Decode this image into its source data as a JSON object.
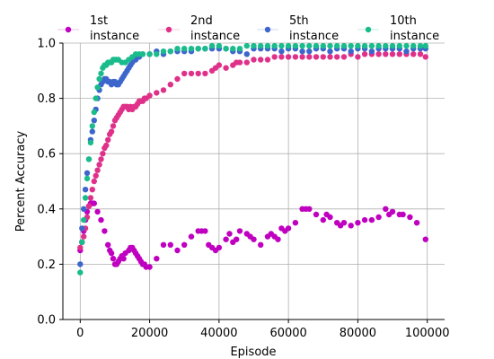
{
  "chart_data": {
    "type": "scatter",
    "title": "",
    "xlabel": "Episode",
    "ylabel": "Percent Accuracy",
    "xlim": [
      -5000,
      105000
    ],
    "ylim": [
      0.0,
      1.0
    ],
    "xticks": [
      0,
      20000,
      40000,
      60000,
      80000,
      100000
    ],
    "xtick_labels": [
      "0",
      "20000",
      "40000",
      "60000",
      "80000",
      "100000"
    ],
    "yticks": [
      0.0,
      0.2,
      0.4,
      0.6,
      0.8,
      1.0
    ],
    "ytick_labels": [
      "0.0",
      "0.2",
      "0.4",
      "0.6",
      "0.8",
      "1.0"
    ],
    "grid": true,
    "legend_position": "top",
    "series": [
      {
        "name": "1st instance",
        "color": "#c000c0",
        "x": [
          0,
          500,
          1000,
          1500,
          2000,
          2500,
          3000,
          3500,
          4000,
          5000,
          6000,
          7000,
          8000,
          8500,
          9000,
          9500,
          10000,
          10500,
          11000,
          11500,
          12000,
          12500,
          13000,
          14000,
          14500,
          15000,
          15500,
          16000,
          16500,
          17000,
          17500,
          18000,
          18500,
          19000,
          20000,
          22000,
          24000,
          26000,
          28000,
          30000,
          32000,
          34000,
          35000,
          36000,
          37000,
          38000,
          39000,
          40000,
          42000,
          43000,
          44000,
          45000,
          46000,
          48000,
          49000,
          50000,
          52000,
          54000,
          55000,
          56000,
          57000,
          58000,
          59000,
          60000,
          62000,
          64000,
          65000,
          66000,
          68000,
          70000,
          71000,
          72000,
          74000,
          75000,
          76000,
          78000,
          80000,
          82000,
          84000,
          86000,
          88000,
          89000,
          90000,
          92000,
          93000,
          95000,
          97000,
          99500
        ],
        "y": [
          0.25,
          0.28,
          0.32,
          0.36,
          0.39,
          0.41,
          0.42,
          0.42,
          0.42,
          0.39,
          0.36,
          0.32,
          0.27,
          0.25,
          0.24,
          0.22,
          0.2,
          0.2,
          0.21,
          0.22,
          0.23,
          0.22,
          0.24,
          0.25,
          0.26,
          0.26,
          0.25,
          0.24,
          0.23,
          0.22,
          0.21,
          0.2,
          0.2,
          0.19,
          0.19,
          0.22,
          0.27,
          0.27,
          0.25,
          0.27,
          0.3,
          0.32,
          0.32,
          0.32,
          0.27,
          0.26,
          0.25,
          0.26,
          0.29,
          0.31,
          0.28,
          0.29,
          0.32,
          0.31,
          0.3,
          0.29,
          0.27,
          0.3,
          0.31,
          0.3,
          0.29,
          0.33,
          0.32,
          0.33,
          0.35,
          0.4,
          0.4,
          0.4,
          0.38,
          0.36,
          0.38,
          0.37,
          0.35,
          0.34,
          0.35,
          0.34,
          0.35,
          0.36,
          0.36,
          0.37,
          0.4,
          0.38,
          0.39,
          0.38,
          0.38,
          0.37,
          0.35,
          0.29
        ]
      },
      {
        "name": "2nd instance",
        "color": "#e0318a",
        "x": [
          0,
          500,
          1000,
          1500,
          2000,
          2500,
          3000,
          3500,
          4000,
          4500,
          5000,
          5500,
          6000,
          6500,
          7000,
          7500,
          8000,
          8500,
          9000,
          9500,
          10000,
          10500,
          11000,
          11500,
          12000,
          12500,
          13000,
          13500,
          14000,
          14500,
          15000,
          15500,
          16000,
          16500,
          17000,
          17500,
          18000,
          18500,
          19000,
          20000,
          22000,
          24000,
          26000,
          28000,
          30000,
          32000,
          34000,
          36000,
          38000,
          39000,
          40000,
          42000,
          44000,
          45000,
          46000,
          48000,
          50000,
          52000,
          54000,
          56000,
          58000,
          60000,
          62000,
          64000,
          66000,
          68000,
          70000,
          72000,
          74000,
          76000,
          78000,
          80000,
          82000,
          84000,
          86000,
          88000,
          90000,
          92000,
          94000,
          96000,
          98000,
          99500
        ],
        "y": [
          0.26,
          0.28,
          0.3,
          0.33,
          0.37,
          0.41,
          0.44,
          0.47,
          0.5,
          0.52,
          0.54,
          0.56,
          0.58,
          0.6,
          0.62,
          0.63,
          0.65,
          0.67,
          0.68,
          0.7,
          0.72,
          0.73,
          0.74,
          0.75,
          0.76,
          0.77,
          0.77,
          0.77,
          0.76,
          0.77,
          0.76,
          0.77,
          0.77,
          0.78,
          0.79,
          0.79,
          0.79,
          0.8,
          0.8,
          0.81,
          0.82,
          0.83,
          0.85,
          0.87,
          0.89,
          0.89,
          0.89,
          0.89,
          0.9,
          0.91,
          0.92,
          0.91,
          0.92,
          0.93,
          0.93,
          0.93,
          0.94,
          0.94,
          0.94,
          0.95,
          0.95,
          0.95,
          0.95,
          0.95,
          0.95,
          0.95,
          0.95,
          0.95,
          0.95,
          0.95,
          0.96,
          0.95,
          0.96,
          0.96,
          0.96,
          0.96,
          0.96,
          0.96,
          0.96,
          0.96,
          0.96,
          0.95
        ]
      },
      {
        "name": "5th instance",
        "color": "#3d66cc",
        "x": [
          0,
          500,
          1000,
          1500,
          2000,
          2500,
          3000,
          3500,
          4000,
          4500,
          5000,
          5500,
          6000,
          6500,
          7000,
          7500,
          8000,
          8500,
          9000,
          9500,
          10000,
          10500,
          11000,
          11500,
          12000,
          12500,
          13000,
          13500,
          14000,
          14500,
          15000,
          16000,
          17000,
          18000,
          20000,
          22000,
          24000,
          26000,
          28000,
          30000,
          32000,
          34000,
          36000,
          38000,
          40000,
          42000,
          44000,
          46000,
          48000,
          50000,
          52000,
          54000,
          56000,
          58000,
          60000,
          62000,
          64000,
          66000,
          68000,
          70000,
          72000,
          74000,
          76000,
          78000,
          80000,
          82000,
          84000,
          86000,
          88000,
          90000,
          92000,
          94000,
          96000,
          98000,
          99500
        ],
        "y": [
          0.2,
          0.33,
          0.4,
          0.47,
          0.53,
          0.58,
          0.65,
          0.68,
          0.72,
          0.76,
          0.8,
          0.83,
          0.85,
          0.86,
          0.87,
          0.87,
          0.86,
          0.86,
          0.85,
          0.86,
          0.86,
          0.85,
          0.85,
          0.86,
          0.87,
          0.88,
          0.89,
          0.9,
          0.91,
          0.92,
          0.93,
          0.94,
          0.95,
          0.96,
          0.96,
          0.97,
          0.96,
          0.97,
          0.97,
          0.97,
          0.97,
          0.98,
          0.98,
          0.98,
          0.98,
          0.98,
          0.97,
          0.97,
          0.96,
          0.98,
          0.98,
          0.98,
          0.98,
          0.97,
          0.98,
          0.98,
          0.97,
          0.97,
          0.98,
          0.98,
          0.97,
          0.98,
          0.98,
          0.97,
          0.98,
          0.98,
          0.97,
          0.98,
          0.98,
          0.98,
          0.98,
          0.97,
          0.98,
          0.98,
          0.98
        ]
      },
      {
        "name": "10th instance",
        "color": "#1abc8c",
        "x": [
          0,
          500,
          1000,
          1500,
          2000,
          2500,
          3000,
          3500,
          4000,
          4500,
          5000,
          5500,
          6000,
          6500,
          7000,
          7500,
          8000,
          8500,
          9000,
          9500,
          10000,
          10500,
          11000,
          12000,
          13000,
          14000,
          15000,
          16000,
          17000,
          18000,
          20000,
          22000,
          24000,
          26000,
          28000,
          30000,
          32000,
          34000,
          36000,
          38000,
          40000,
          42000,
          44000,
          46000,
          48000,
          50000,
          52000,
          54000,
          56000,
          58000,
          60000,
          62000,
          64000,
          66000,
          68000,
          70000,
          72000,
          74000,
          76000,
          78000,
          80000,
          82000,
          84000,
          86000,
          88000,
          90000,
          92000,
          94000,
          96000,
          98000,
          99500
        ],
        "y": [
          0.17,
          0.28,
          0.36,
          0.44,
          0.51,
          0.58,
          0.64,
          0.7,
          0.75,
          0.8,
          0.84,
          0.87,
          0.89,
          0.91,
          0.92,
          0.92,
          0.93,
          0.93,
          0.93,
          0.94,
          0.94,
          0.94,
          0.94,
          0.93,
          0.93,
          0.94,
          0.95,
          0.96,
          0.96,
          0.96,
          0.96,
          0.96,
          0.97,
          0.97,
          0.98,
          0.98,
          0.98,
          0.98,
          0.98,
          0.99,
          0.99,
          0.98,
          0.98,
          0.98,
          0.99,
          0.99,
          0.99,
          0.99,
          0.99,
          0.99,
          0.99,
          0.99,
          0.99,
          0.99,
          0.99,
          0.99,
          0.99,
          0.99,
          0.99,
          0.99,
          0.99,
          0.99,
          0.99,
          0.99,
          0.99,
          0.99,
          0.99,
          0.99,
          0.99,
          0.99,
          0.99
        ]
      }
    ]
  }
}
